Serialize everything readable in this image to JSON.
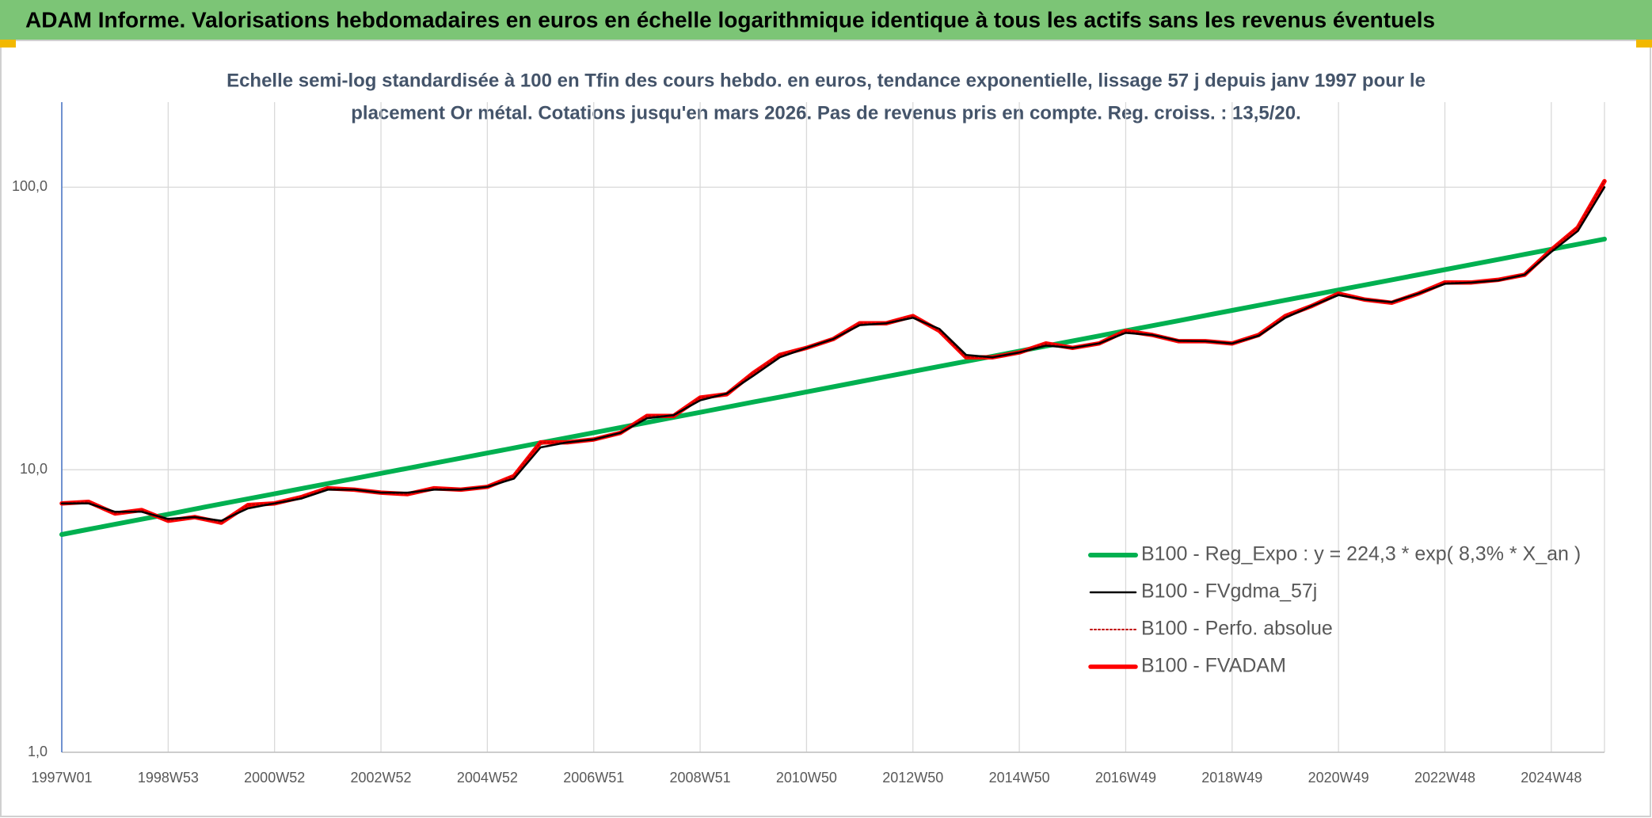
{
  "chart_data": {
    "type": "line",
    "title": "ADAM Informe. Valorisations hebdomadaires en euros en échelle logarithmique identique à tous les actifs sans les revenus éventuels",
    "subtitle": [
      "Echelle semi-log standardisée à 100 en Tfin des cours hebdo. en euros, tendance exponentielle, lissage 57 j depuis janv 1997 pour le",
      "placement Or métal. Cotations jusqu'en mars 2026. Pas de revenus pris en compte. Reg. croiss. : 13,5/20."
    ],
    "categories": [
      "1997W01",
      null,
      null,
      null,
      "1998W53",
      null,
      null,
      null,
      "2000W52",
      null,
      null,
      null,
      "2002W52",
      null,
      null,
      null,
      "2004W52",
      null,
      null,
      null,
      "2006W51",
      null,
      null,
      null,
      "2008W51",
      null,
      null,
      null,
      "2010W50",
      null,
      null,
      null,
      "2012W50",
      null,
      null,
      null,
      "2014W50",
      null,
      null,
      null,
      "2016W49",
      null,
      null,
      null,
      "2018W49",
      null,
      null,
      null,
      "2020W49",
      null,
      null,
      null,
      "2022W48",
      null,
      null,
      null,
      "2024W48",
      null,
      null
    ],
    "log_scale": true,
    "ylim": [
      1,
      200
    ],
    "yticks": [
      {
        "value": 1,
        "label": "1,0"
      },
      {
        "value": 10,
        "label": "10,0"
      },
      {
        "value": 100,
        "label": "100,0"
      }
    ],
    "grid": true,
    "legend": "bottom-right",
    "series": [
      {
        "name": "B100 - Reg_Expo : y = 224,3 * exp( 8,3% *  X_an )",
        "color": "#00b050",
        "line_style": "solid",
        "values": [
          5.9,
          6.15,
          6.41,
          6.68,
          6.96,
          7.26,
          7.57,
          7.89,
          8.22,
          8.57,
          8.93,
          9.31,
          9.71,
          10.12,
          10.55,
          10.99,
          11.46,
          11.94,
          12.45,
          12.98,
          13.53,
          14.1,
          14.7,
          15.32,
          15.97,
          16.65,
          17.36,
          18.09,
          18.86,
          19.66,
          20.49,
          21.36,
          22.27,
          23.21,
          24.19,
          25.22,
          26.29,
          27.4,
          28.56,
          29.77,
          31.03,
          32.35,
          33.72,
          35.15,
          36.64,
          38.19,
          39.81,
          41.5,
          43.26,
          45.09,
          47.0,
          48.99,
          51.07,
          53.23,
          55.49,
          57.84,
          60.29,
          62.85,
          65.51
        ]
      },
      {
        "name": "B100 - FVgdma_57j",
        "color": "#000000",
        "line_style": "solid",
        "values": [
          7.6,
          7.6,
          7.1,
          7.1,
          6.7,
          6.8,
          6.6,
          7.3,
          7.6,
          7.9,
          8.5,
          8.5,
          8.3,
          8.3,
          8.5,
          8.5,
          8.7,
          9.3,
          12.0,
          12.5,
          12.8,
          13.5,
          15.2,
          15.6,
          17.6,
          18.6,
          21.5,
          25.0,
          27.0,
          29.0,
          32.5,
          33.0,
          34.5,
          31.5,
          25.5,
          25.0,
          26.0,
          27.5,
          27.0,
          28.0,
          30.5,
          30.0,
          28.6,
          28.5,
          28.0,
          29.8,
          34.5,
          38.0,
          41.5,
          40.0,
          39.2,
          42.0,
          45.5,
          46.0,
          46.8,
          49.0,
          59.0,
          70.0,
          100.0
        ]
      },
      {
        "name": "B100 - Perfo. absolue",
        "color": "#c00000",
        "line_style": "dotted",
        "values": [
          7.6,
          7.7,
          7.0,
          7.2,
          6.6,
          6.8,
          6.5,
          7.5,
          7.6,
          8.0,
          8.6,
          8.5,
          8.3,
          8.2,
          8.6,
          8.5,
          8.7,
          9.5,
          12.5,
          12.5,
          12.8,
          13.5,
          15.5,
          15.5,
          18.0,
          18.5,
          22.0,
          25.5,
          27.0,
          29.0,
          33.0,
          33.0,
          35.0,
          31.0,
          25.0,
          25.0,
          26.0,
          28.0,
          27.0,
          28.0,
          31.0,
          30.0,
          28.5,
          28.5,
          28.0,
          30.0,
          35.0,
          38.0,
          42.0,
          40.0,
          39.0,
          42.0,
          46.0,
          46.0,
          47.0,
          49.0,
          60.0,
          72.0,
          105.0
        ]
      },
      {
        "name": "B100 - FVADAM",
        "color": "#ff0000",
        "line_style": "solid",
        "values": [
          7.6,
          7.7,
          7.0,
          7.2,
          6.6,
          6.8,
          6.5,
          7.5,
          7.6,
          8.0,
          8.6,
          8.5,
          8.3,
          8.2,
          8.6,
          8.5,
          8.7,
          9.5,
          12.5,
          12.5,
          12.8,
          13.5,
          15.5,
          15.5,
          18.0,
          18.5,
          22.0,
          25.5,
          27.0,
          29.0,
          33.0,
          33.0,
          35.0,
          31.0,
          25.0,
          25.0,
          26.0,
          28.0,
          27.0,
          28.0,
          31.0,
          30.0,
          28.5,
          28.5,
          28.0,
          30.0,
          35.0,
          38.0,
          42.0,
          40.0,
          39.0,
          42.0,
          46.0,
          46.0,
          47.0,
          49.0,
          60.0,
          72.0,
          105.0
        ]
      }
    ]
  }
}
